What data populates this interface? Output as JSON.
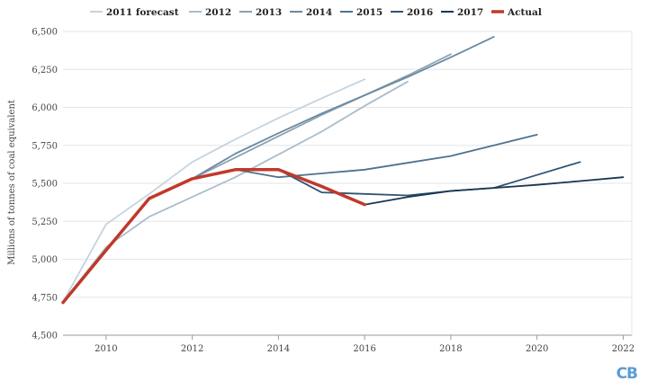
{
  "chart_data": {
    "type": "line",
    "title": "",
    "xlabel": "",
    "ylabel": "Millions of tonnes of coal equivalent",
    "xlim": [
      2009,
      2022.2
    ],
    "ylim": [
      4500,
      6500
    ],
    "x_ticks": [
      2010,
      2012,
      2014,
      2016,
      2018,
      2020,
      2022
    ],
    "x_tick_labels": [
      "2010",
      "2012",
      "2014",
      "2016",
      "2018",
      "2020",
      "2022"
    ],
    "y_ticks": [
      4500,
      4750,
      5000,
      5250,
      5500,
      5750,
      6000,
      6250,
      6500
    ],
    "y_tick_labels": [
      "4,500",
      "4,750",
      "5,000",
      "5,250",
      "5,500",
      "5,750",
      "6,000",
      "6,250",
      "6,500"
    ],
    "grid": "horizontal",
    "legend_position": "top",
    "series": [
      {
        "name": "2011 forecast",
        "color": "#c5d3de",
        "x": [
          2009,
          2010,
          2011,
          2012,
          2013,
          2014,
          2015,
          2016
        ],
        "y": [
          4720,
          5230,
          5430,
          5640,
          5790,
          5930,
          6060,
          6185
        ]
      },
      {
        "name": "2012",
        "color": "#a9bccb",
        "x": [
          2009,
          2010,
          2011,
          2012,
          2013,
          2014,
          2015,
          2016,
          2017
        ],
        "y": [
          4720,
          5080,
          5280,
          5410,
          5540,
          5690,
          5840,
          6010,
          6170
        ]
      },
      {
        "name": "2013",
        "color": "#8aa3b5",
        "x": [
          2012,
          2013,
          2014,
          2015,
          2016,
          2017,
          2018
        ],
        "y": [
          5530,
          5670,
          5810,
          5950,
          6080,
          6210,
          6350
        ]
      },
      {
        "name": "2014",
        "color": "#6b8aa1",
        "x": [
          2012,
          2013,
          2014,
          2015,
          2016,
          2017,
          2018,
          2019
        ],
        "y": [
          5530,
          5695,
          5830,
          5960,
          6080,
          6200,
          6330,
          6465
        ]
      },
      {
        "name": "2015",
        "color": "#4f7290",
        "x": [
          2013,
          2014,
          2015,
          2016,
          2017,
          2018,
          2019,
          2020
        ],
        "y": [
          5590,
          5540,
          5565,
          5590,
          5635,
          5680,
          5750,
          5820
        ]
      },
      {
        "name": "2016",
        "color": "#305473",
        "x": [
          2014,
          2015,
          2016,
          2017,
          2018,
          2019,
          2020,
          2021
        ],
        "y": [
          5590,
          5440,
          5430,
          5420,
          5450,
          5470,
          5555,
          5640
        ]
      },
      {
        "name": "2017",
        "color": "#1a3650",
        "x": [
          2016,
          2017,
          2018,
          2019,
          2020,
          2021,
          2022
        ],
        "y": [
          5360,
          5410,
          5450,
          5470,
          5490,
          5515,
          5540
        ]
      },
      {
        "name": "Actual",
        "color": "#c0392b",
        "x": [
          2009,
          2010,
          2011,
          2012,
          2013,
          2014,
          2015,
          2016
        ],
        "y": [
          4715,
          5060,
          5400,
          5530,
          5590,
          5590,
          5480,
          5360
        ]
      }
    ]
  },
  "branding": {
    "logo_text": "CB"
  }
}
